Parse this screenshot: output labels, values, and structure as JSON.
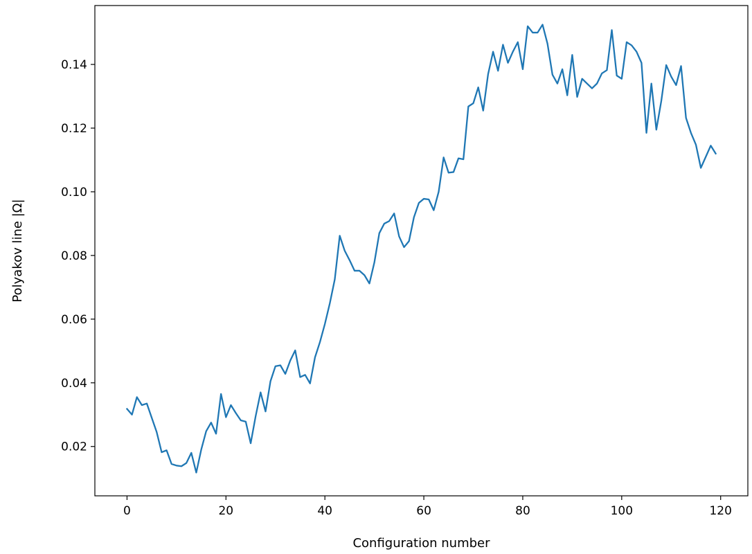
{
  "chart_data": {
    "type": "line",
    "title": "",
    "xlabel": "Configuration number",
    "ylabel": "Polyakov line |Ω|",
    "xlim": [
      -6.5,
      125.5
    ],
    "ylim": [
      0.0045,
      0.1585
    ],
    "xticks": [
      0,
      20,
      40,
      60,
      80,
      100,
      120
    ],
    "yticks": [
      0.02,
      0.04,
      0.06,
      0.08,
      0.1,
      0.12,
      0.14
    ],
    "ytick_labels": [
      "0.02",
      "0.04",
      "0.06",
      "0.08",
      "0.10",
      "0.12",
      "0.14"
    ],
    "grid": false,
    "series": [
      {
        "color": "#1f77b4",
        "x": [
          0,
          1,
          2,
          3,
          4,
          5,
          6,
          7,
          8,
          9,
          10,
          11,
          12,
          13,
          14,
          15,
          16,
          17,
          18,
          19,
          20,
          21,
          22,
          23,
          24,
          25,
          26,
          27,
          28,
          29,
          30,
          31,
          32,
          33,
          34,
          35,
          36,
          37,
          38,
          39,
          40,
          41,
          42,
          43,
          44,
          45,
          46,
          47,
          48,
          49,
          50,
          51,
          52,
          53,
          54,
          55,
          56,
          57,
          58,
          59,
          60,
          61,
          62,
          63,
          64,
          65,
          66,
          67,
          68,
          69,
          70,
          71,
          72,
          73,
          74,
          75,
          76,
          77,
          78,
          79,
          80,
          81,
          82,
          83,
          84,
          85,
          86,
          87,
          88,
          89,
          90,
          91,
          92,
          93,
          94,
          95,
          96,
          97,
          98,
          99,
          100,
          101,
          102,
          103,
          104,
          105,
          106,
          107,
          108,
          109,
          110,
          111,
          112,
          113,
          114,
          115,
          116,
          117,
          118,
          119
        ],
        "y": [
          0.0318,
          0.03,
          0.0355,
          0.033,
          0.0335,
          0.029,
          0.0245,
          0.0182,
          0.0188,
          0.0145,
          0.014,
          0.0138,
          0.0148,
          0.018,
          0.0118,
          0.019,
          0.0248,
          0.0275,
          0.024,
          0.0365,
          0.0292,
          0.033,
          0.0305,
          0.0282,
          0.0278,
          0.021,
          0.0295,
          0.037,
          0.031,
          0.0405,
          0.0452,
          0.0455,
          0.0428,
          0.047,
          0.0502,
          0.0418,
          0.0425,
          0.0398,
          0.048,
          0.0528,
          0.0585,
          0.065,
          0.0725,
          0.0862,
          0.0815,
          0.0785,
          0.0752,
          0.0752,
          0.0738,
          0.0712,
          0.0778,
          0.087,
          0.09,
          0.0908,
          0.0932,
          0.086,
          0.0826,
          0.0845,
          0.092,
          0.0965,
          0.0978,
          0.0976,
          0.0942,
          0.1,
          0.1108,
          0.106,
          0.1062,
          0.1105,
          0.1102,
          0.1268,
          0.1278,
          0.1328,
          0.1255,
          0.137,
          0.144,
          0.138,
          0.1462,
          0.1405,
          0.144,
          0.147,
          0.1385,
          0.152,
          0.15,
          0.15,
          0.1525,
          0.1465,
          0.1368,
          0.134,
          0.1385,
          0.1303,
          0.143,
          0.1298,
          0.1355,
          0.134,
          0.1325,
          0.134,
          0.1372,
          0.1382,
          0.1508,
          0.1365,
          0.1355,
          0.147,
          0.146,
          0.144,
          0.1405,
          0.1185,
          0.134,
          0.1195,
          0.1285,
          0.1398,
          0.1362,
          0.1335,
          0.1395,
          0.1232,
          0.1185,
          0.1148,
          0.1075,
          0.111,
          0.1145,
          0.112
        ]
      }
    ]
  }
}
